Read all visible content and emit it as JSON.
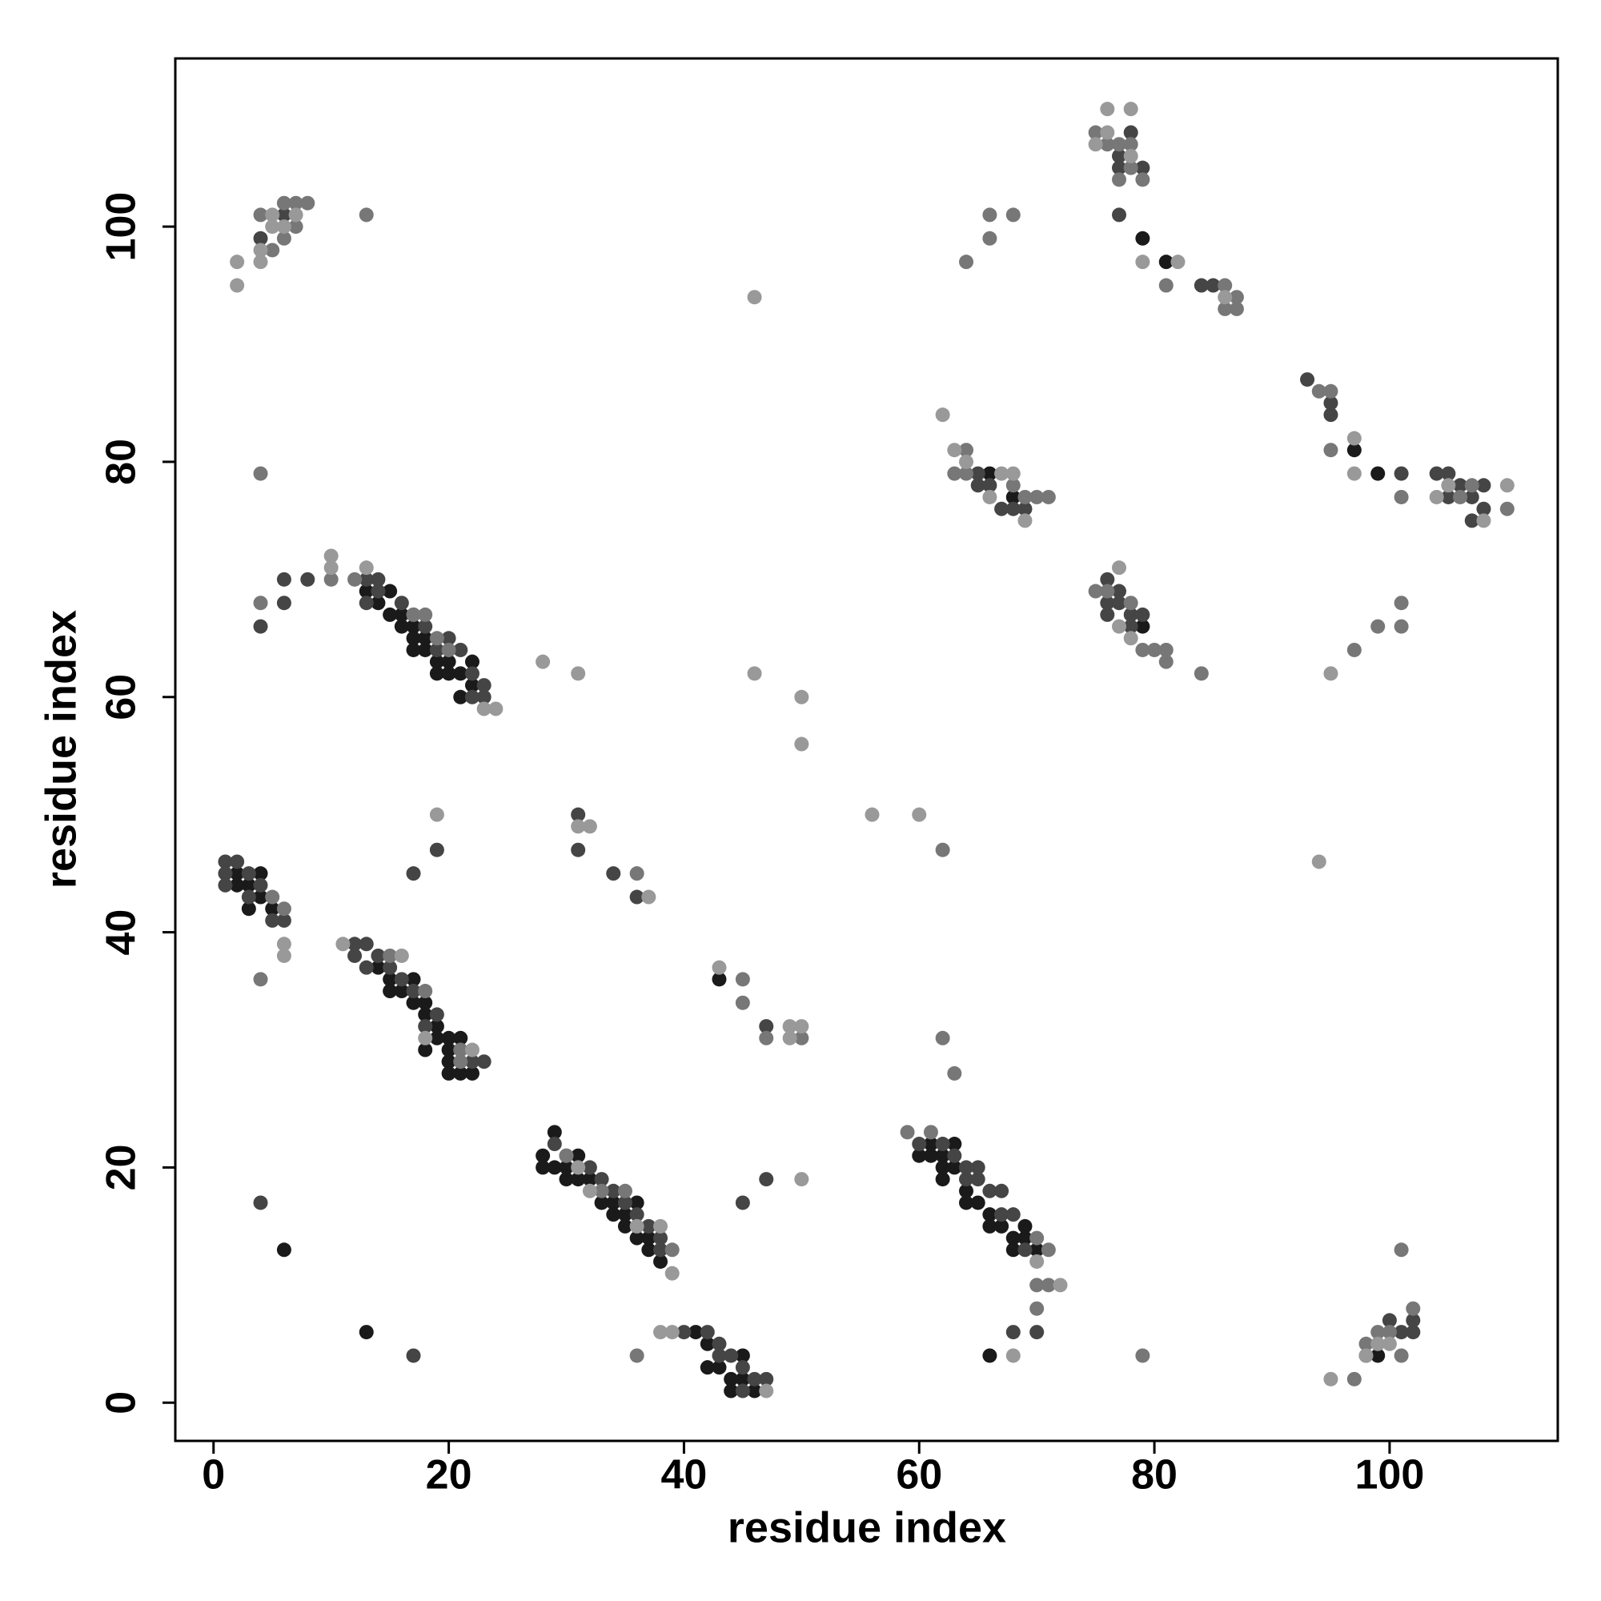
{
  "chart_data": {
    "type": "scatter",
    "xlabel": "residue index",
    "ylabel": "residue index",
    "xlim": [
      -3.25,
      114.3
    ],
    "ylim": [
      -3.25,
      114.3
    ],
    "xticks": [
      0,
      20,
      40,
      60,
      80,
      100
    ],
    "yticks": [
      0,
      20,
      40,
      60,
      80,
      100
    ],
    "series": [
      {
        "color": "#1a1a1a",
        "x": [
          13,
          14,
          15,
          15,
          16,
          16,
          17,
          17,
          17,
          18,
          18,
          19,
          19,
          20,
          20,
          21,
          21,
          22,
          22,
          14,
          15,
          15,
          16,
          17,
          17,
          18,
          18,
          19,
          19,
          20,
          20,
          20,
          21,
          21,
          20,
          22,
          18,
          2,
          2,
          3,
          4,
          4,
          5,
          3,
          28,
          28,
          29,
          29,
          30,
          30,
          31,
          31,
          32,
          33,
          34,
          34,
          35,
          35,
          36,
          36,
          37,
          37,
          38,
          60,
          61,
          61,
          62,
          62,
          62,
          63,
          63,
          64,
          64,
          65,
          66,
          66,
          67,
          68,
          68,
          69,
          69,
          70,
          41,
          42,
          42,
          43,
          44,
          44,
          45,
          45,
          46,
          6,
          13,
          43,
          66,
          66,
          68,
          79,
          79,
          81,
          97,
          99,
          99
        ],
        "y": [
          69,
          68,
          69,
          67,
          67,
          66,
          66,
          65,
          64,
          65,
          64,
          63,
          62,
          63,
          62,
          62,
          60,
          63,
          61,
          37,
          36,
          35,
          35,
          36,
          34,
          34,
          33,
          32,
          31,
          31,
          30,
          29,
          31,
          28,
          28,
          28,
          30,
          45,
          44,
          44,
          45,
          43,
          42,
          42,
          21,
          20,
          23,
          20,
          20,
          19,
          21,
          19,
          19,
          17,
          17,
          16,
          16,
          15,
          17,
          14,
          14,
          13,
          12,
          21,
          22,
          21,
          21,
          20,
          19,
          22,
          20,
          18,
          17,
          17,
          16,
          15,
          15,
          14,
          13,
          15,
          14,
          13,
          6,
          5,
          3,
          3,
          2,
          1,
          4,
          2,
          1,
          13,
          6,
          36,
          4,
          79,
          77,
          66,
          99,
          97,
          81,
          79,
          4
        ]
      },
      {
        "color": "#454545",
        "x": [
          13,
          13,
          14,
          14,
          16,
          17,
          18,
          19,
          20,
          21,
          22,
          23,
          23,
          22,
          4,
          6,
          6,
          8,
          12,
          12,
          13,
          13,
          14,
          15,
          16,
          17,
          18,
          19,
          21,
          23,
          22,
          1,
          1,
          1,
          2,
          3,
          3,
          4,
          5,
          6,
          17,
          19,
          31,
          31,
          34,
          36,
          29,
          30,
          32,
          33,
          34,
          35,
          36,
          37,
          38,
          38,
          47,
          45,
          47,
          60,
          62,
          63,
          64,
          64,
          65,
          65,
          66,
          67,
          67,
          68,
          69,
          70,
          68,
          40,
          42,
          43,
          43,
          44,
          45,
          45,
          46,
          47,
          76,
          76,
          76,
          77,
          77,
          78,
          78,
          79,
          77,
          78,
          77,
          79,
          77,
          84,
          85,
          65,
          65,
          67,
          66,
          68,
          69,
          93,
          95,
          95,
          101,
          104,
          105,
          105,
          106,
          107,
          108,
          108,
          107,
          98,
          100,
          101,
          102,
          102,
          4,
          6,
          4,
          17
        ],
        "y": [
          70,
          68,
          70,
          69,
          68,
          67,
          66,
          64,
          65,
          64,
          62,
          61,
          60,
          60,
          66,
          70,
          68,
          70,
          39,
          38,
          39,
          37,
          38,
          37,
          36,
          35,
          32,
          33,
          30,
          29,
          29,
          46,
          45,
          44,
          46,
          45,
          43,
          44,
          41,
          41,
          45,
          47,
          47,
          50,
          45,
          43,
          22,
          21,
          20,
          19,
          18,
          17,
          16,
          15,
          14,
          13,
          19,
          17,
          32,
          22,
          22,
          21,
          20,
          19,
          20,
          19,
          18,
          18,
          16,
          16,
          13,
          6,
          6,
          6,
          6,
          5,
          4,
          4,
          3,
          1,
          2,
          2,
          70,
          68,
          67,
          69,
          68,
          67,
          66,
          67,
          106,
          108,
          105,
          105,
          101,
          95,
          95,
          79,
          78,
          76,
          78,
          76,
          76,
          87,
          85,
          84,
          79,
          79,
          79,
          77,
          78,
          77,
          78,
          76,
          75,
          4,
          7,
          6,
          7,
          6,
          99,
          101,
          17,
          4
        ]
      },
      {
        "color": "#777777",
        "x": [
          4,
          5,
          6,
          6,
          7,
          7,
          8,
          13,
          4,
          4,
          4,
          10,
          12,
          6,
          5,
          15,
          18,
          19,
          20,
          18,
          17,
          21,
          21,
          30,
          33,
          35,
          39,
          45,
          45,
          47,
          50,
          36,
          36,
          62,
          63,
          62,
          59,
          61,
          70,
          71,
          70,
          71,
          70,
          64,
          63,
          64,
          68,
          69,
          70,
          71,
          66,
          66,
          64,
          68,
          75,
          76,
          77,
          78,
          78,
          77,
          79,
          81,
          86,
          86,
          87,
          87,
          75,
          76,
          78,
          79,
          80,
          81,
          81,
          84,
          79,
          94,
          95,
          95,
          101,
          99,
          101,
          101,
          97,
          97,
          98,
          99,
          101,
          101,
          102,
          100,
          106,
          107,
          110
        ],
        "y": [
          101,
          98,
          102,
          99,
          102,
          100,
          102,
          101,
          79,
          68,
          36,
          70,
          70,
          42,
          43,
          38,
          35,
          65,
          64,
          67,
          67,
          30,
          29,
          21,
          18,
          18,
          13,
          36,
          34,
          31,
          31,
          45,
          4,
          31,
          28,
          47,
          23,
          23,
          14,
          13,
          10,
          10,
          8,
          81,
          79,
          79,
          78,
          77,
          77,
          77,
          101,
          99,
          97,
          101,
          108,
          107,
          107,
          107,
          105,
          104,
          104,
          95,
          95,
          93,
          93,
          94,
          69,
          69,
          68,
          64,
          64,
          64,
          63,
          62,
          4,
          86,
          86,
          81,
          77,
          66,
          66,
          68,
          64,
          2,
          5,
          6,
          13,
          4,
          8,
          6,
          77,
          78,
          76
        ]
      },
      {
        "color": "#999999",
        "x": [
          2,
          2,
          4,
          4,
          5,
          5,
          6,
          7,
          10,
          10,
          13,
          24,
          23,
          28,
          31,
          11,
          19,
          31,
          32,
          37,
          46,
          50,
          50,
          56,
          60,
          6,
          6,
          16,
          18,
          22,
          31,
          32,
          36,
          38,
          39,
          43,
          38,
          39,
          47,
          50,
          49,
          49,
          50,
          46,
          62,
          63,
          64,
          66,
          67,
          68,
          69,
          76,
          78,
          75,
          76,
          78,
          79,
          82,
          86,
          77,
          77,
          78,
          70,
          72,
          68,
          95,
          98,
          99,
          100,
          94,
          95,
          104,
          105,
          108,
          110,
          97,
          97
        ],
        "y": [
          95,
          97,
          98,
          97,
          101,
          100,
          100,
          101,
          72,
          71,
          71,
          59,
          59,
          63,
          62,
          39,
          50,
          49,
          49,
          43,
          62,
          60,
          56,
          50,
          50,
          38,
          39,
          38,
          31,
          30,
          20,
          18,
          15,
          15,
          11,
          37,
          6,
          6,
          1,
          19,
          32,
          31,
          32,
          94,
          84,
          81,
          80,
          77,
          79,
          79,
          75,
          110,
          110,
          107,
          108,
          106,
          97,
          97,
          94,
          66,
          71,
          65,
          12,
          10,
          4,
          2,
          4,
          5,
          5,
          46,
          62,
          77,
          78,
          75,
          78,
          79,
          82
        ]
      }
    ]
  }
}
